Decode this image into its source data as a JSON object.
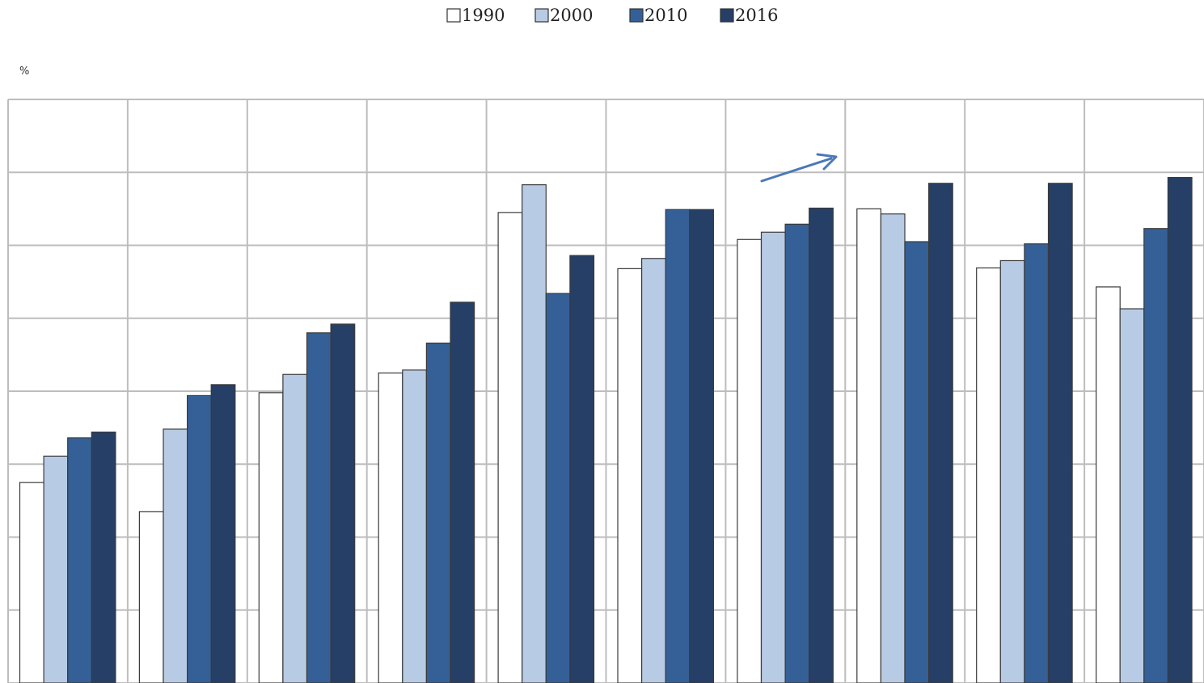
{
  "chart_data": {
    "type": "bar",
    "ylabel": "%",
    "ylim": [
      0,
      80
    ],
    "y_gridline_step": 10,
    "grid": true,
    "legend_position": "top-center",
    "group_count": 10,
    "series": [
      {
        "name": "1990",
        "color": "#ffffff",
        "values": [
          27.5,
          23.5,
          39.8,
          42.5,
          64.5,
          56.8,
          60.8,
          65.0,
          56.9,
          54.3
        ]
      },
      {
        "name": "2000",
        "color": "#b7cbe4",
        "values": [
          31.1,
          34.8,
          42.3,
          42.9,
          68.3,
          58.2,
          61.8,
          64.3,
          57.9,
          51.3
        ]
      },
      {
        "name": "2010",
        "color": "#356097",
        "values": [
          33.6,
          39.4,
          48.0,
          46.6,
          53.4,
          64.9,
          62.9,
          60.5,
          60.2,
          62.3
        ]
      },
      {
        "name": "2016",
        "color": "#253f66",
        "values": [
          34.4,
          40.9,
          49.2,
          52.2,
          58.6,
          64.9,
          65.1,
          68.5,
          68.5,
          69.3
        ]
      }
    ],
    "annotation": {
      "type": "arrow",
      "color": "#4a78b8"
    }
  }
}
